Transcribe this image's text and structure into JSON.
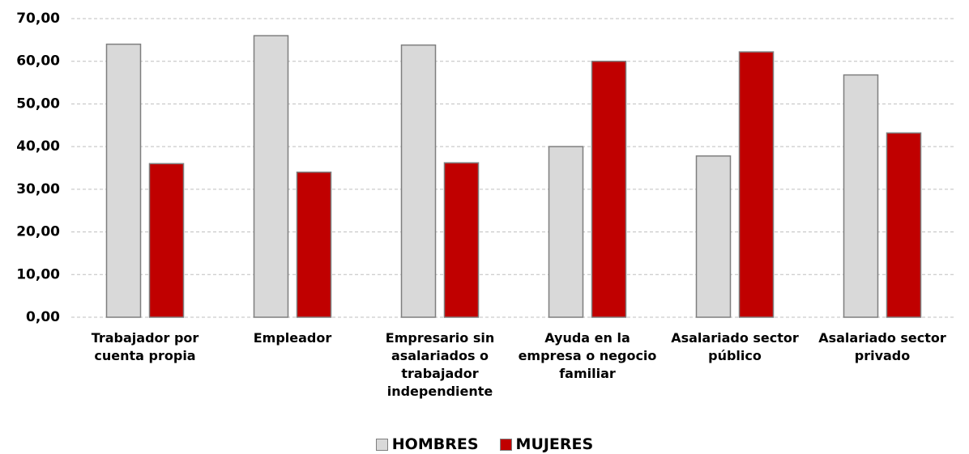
{
  "chart_data": {
    "type": "bar",
    "categories": [
      "Trabajador por cuenta propia",
      "Empleador",
      "Empresario sin asalariados o trabajador independiente",
      "Ayuda en la empresa o negocio familiar",
      "Asalariado sector público",
      "Asalariado sector privado"
    ],
    "series": [
      {
        "name": "HOMBRES",
        "color": "#d9d9d9",
        "values": [
          64,
          66,
          63.8,
          40,
          37.8,
          56.8
        ]
      },
      {
        "name": "MUJERES",
        "color": "#c00000",
        "values": [
          36,
          34,
          36.2,
          60,
          62.2,
          43.2
        ]
      }
    ],
    "ylim": [
      0,
      70
    ],
    "yticks": [
      {
        "value": 0,
        "label": "0,00"
      },
      {
        "value": 10,
        "label": "10,00"
      },
      {
        "value": 20,
        "label": "20,00"
      },
      {
        "value": 30,
        "label": "30,00"
      },
      {
        "value": 40,
        "label": "40,00"
      },
      {
        "value": 50,
        "label": "50,00"
      },
      {
        "value": 60,
        "label": "60,00"
      },
      {
        "value": 70,
        "label": "70,00"
      }
    ],
    "grid": true,
    "legend": "bottom"
  }
}
